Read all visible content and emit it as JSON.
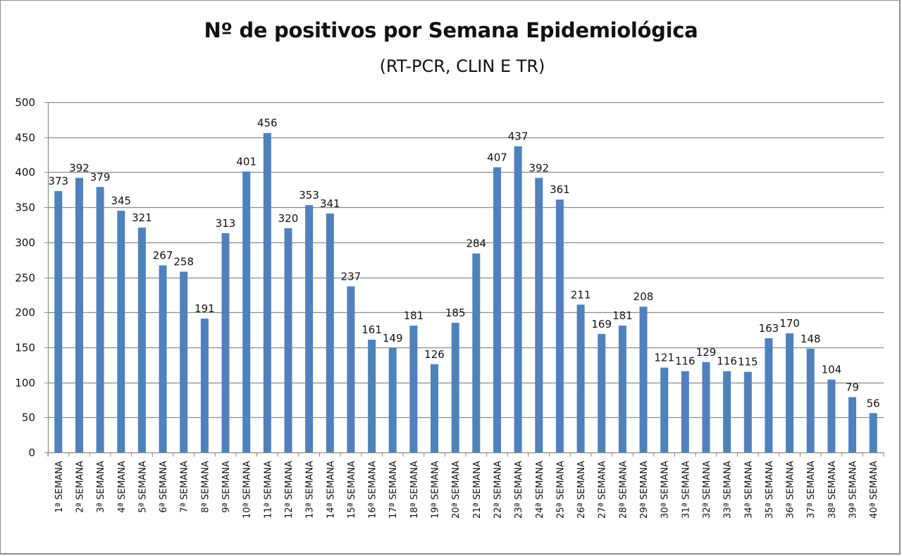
{
  "chart_data": {
    "type": "bar",
    "title": "Nº de positivos por Semana Epidemiológica",
    "subtitle": "(RT-PCR,  CLIN E TR)",
    "xlabel": "",
    "ylabel": "",
    "ylim": [
      0,
      500
    ],
    "yticks": [
      0,
      50,
      100,
      150,
      200,
      250,
      300,
      350,
      400,
      450,
      500
    ],
    "grid": true,
    "legend": "none",
    "bar_color": "#4f81bd",
    "categories": [
      "1ª SEMANA",
      "2ª SEMANA",
      "3ª SEMANA",
      "4ª SEMANA",
      "5ª SEMANA",
      "6ª SEMANA",
      "7ª SEMANA",
      "8ª SEMANA",
      "9ª SEMANA",
      "10ª SEMANA",
      "11ª SEMANA",
      "12ª SEMANA",
      "13ª SEMANA",
      "14ª SEMANA",
      "15ª SEMANA",
      "16ª SEMANA",
      "17ª SEMANA",
      "18ª SEMANA",
      "19ª SEMANA",
      "20ª SEMANA",
      "21ª SEMANA",
      "22ª SEMANA",
      "23ª SEMANA",
      "24ª SEMANA",
      "25ª SEMANA",
      "26ª SEMANA",
      "27ª SEMANA",
      "28ª SEMANA",
      "29ª SEMANA",
      "30ª SEMANA",
      "31ª SEMANA",
      "32ª SEMANA",
      "33ª SEMANA",
      "34ª SEMANA",
      "35ª SEMANA",
      "36ª SEMANA",
      "37ª SEMANA",
      "38ª SEMANA",
      "39ª SEMANA",
      "40ª SEMANA"
    ],
    "values": [
      373,
      392,
      379,
      345,
      321,
      267,
      258,
      191,
      313,
      401,
      456,
      320,
      353,
      341,
      237,
      161,
      149,
      181,
      126,
      185,
      284,
      407,
      437,
      392,
      361,
      211,
      169,
      181,
      208,
      121,
      116,
      129,
      116,
      115,
      163,
      170,
      148,
      104,
      79,
      56
    ]
  }
}
